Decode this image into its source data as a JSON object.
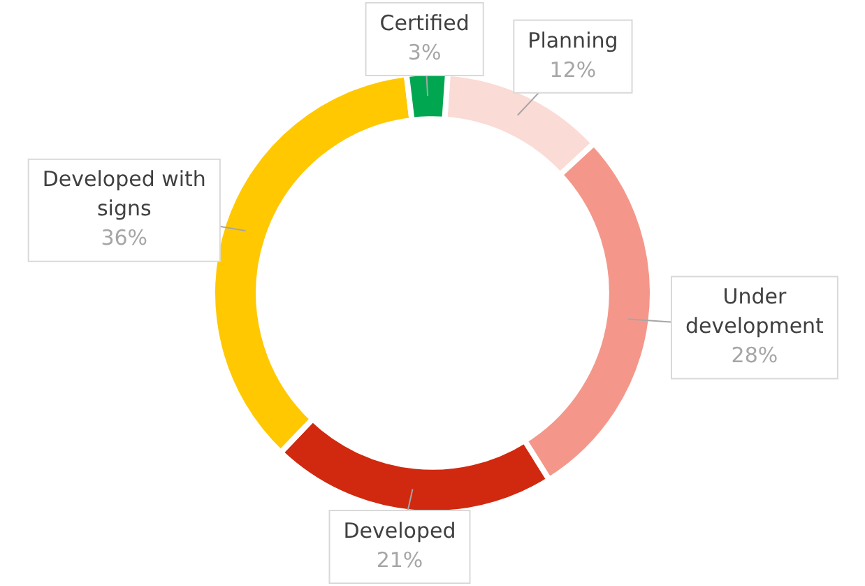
{
  "chart_data": {
    "type": "donut",
    "categories": [
      "Planning",
      "Under development",
      "Developed",
      "Developed with signs",
      "Certified"
    ],
    "values": [
      12,
      28,
      21,
      36,
      3
    ],
    "value_labels": [
      "12%",
      "28%",
      "21%",
      "36%",
      "3%"
    ],
    "colors": [
      "#fadbd5",
      "#f4978a",
      "#d0290f",
      "#ffc800",
      "#00a650"
    ],
    "legend": false
  }
}
